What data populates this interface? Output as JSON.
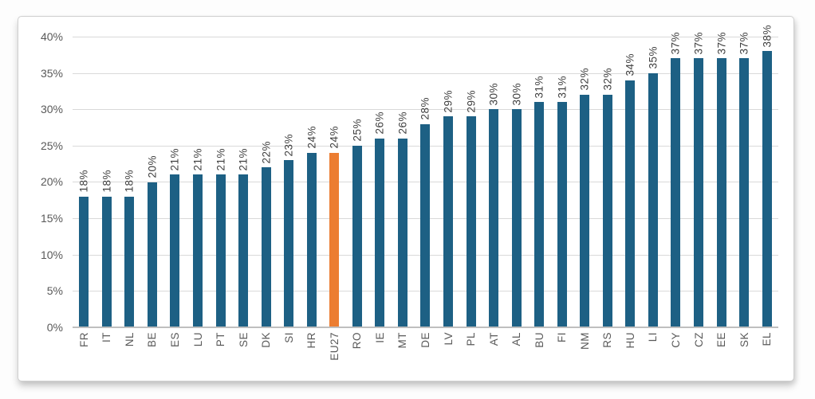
{
  "colors": {
    "bar": "#1d6084",
    "highlight_bar": "#ec7d31",
    "gridline": "#d9d9d9",
    "axis_line": "#bfbfbf",
    "tick_label": "#595959",
    "data_label": "#3f3f3f",
    "chart_border": "#cfcfcf",
    "background": "#ffffff"
  },
  "chart_data": {
    "type": "bar",
    "title": "",
    "xlabel": "",
    "ylabel": "",
    "unit": "%",
    "categories": [
      "FR",
      "IT",
      "NL",
      "BE",
      "ES",
      "LU",
      "PT",
      "SE",
      "DK",
      "SI",
      "HR",
      "EU27",
      "RO",
      "IE",
      "MT",
      "DE",
      "LV",
      "PL",
      "AT",
      "AL",
      "BU",
      "FI",
      "NM",
      "RS",
      "HU",
      "LI",
      "CY",
      "CZ",
      "EE",
      "SK",
      "EL"
    ],
    "values": [
      18,
      18,
      18,
      20,
      21,
      21,
      21,
      21,
      22,
      23,
      24,
      24,
      25,
      26,
      26,
      28,
      29,
      29,
      30,
      30,
      31,
      31,
      32,
      32,
      34,
      35,
      37,
      37,
      37,
      37,
      38
    ],
    "data_labels": [
      "18%",
      "18%",
      "18%",
      "20%",
      "21%",
      "21%",
      "21%",
      "21%",
      "22%",
      "23%",
      "24%",
      "24%",
      "25%",
      "26%",
      "26%",
      "28%",
      "29%",
      "29%",
      "30%",
      "30%",
      "31%",
      "31%",
      "32%",
      "32%",
      "34%",
      "35%",
      "37%",
      "37%",
      "37%",
      "37%",
      "38%"
    ],
    "highlight_category": "EU27",
    "ylim": [
      0,
      40
    ],
    "ytick_values": [
      0,
      5,
      10,
      15,
      20,
      25,
      30,
      35,
      40
    ],
    "ytick_labels": [
      "0%",
      "5%",
      "10%",
      "15%",
      "20%",
      "25%",
      "30%",
      "35%",
      "40%"
    ],
    "grid": true,
    "legend": null,
    "bar_label_rotation": "vertical",
    "x_label_rotation": "vertical"
  }
}
